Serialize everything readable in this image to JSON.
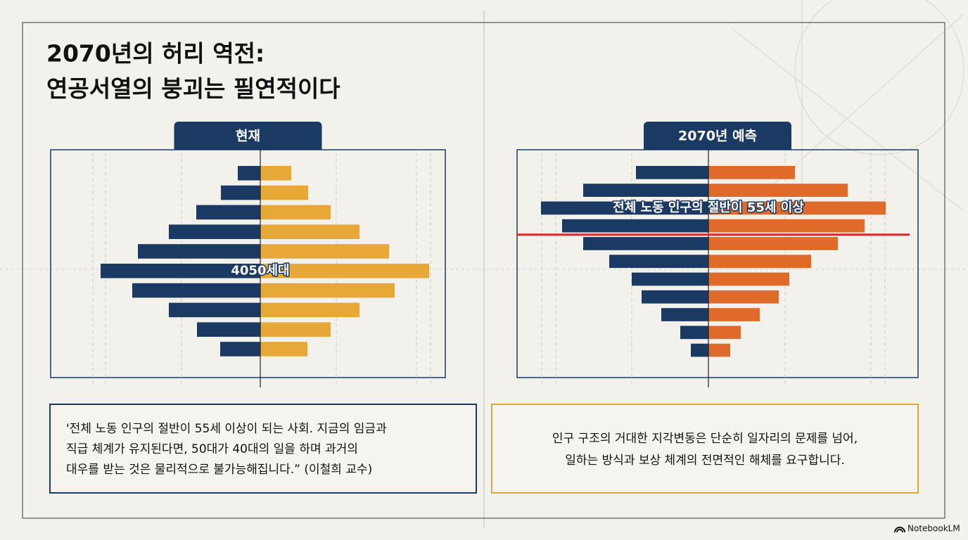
{
  "header": {
    "title_lines": [
      "2070년의 허리 역전:",
      "연공서열의 붕괴는 필연적이다"
    ]
  },
  "chart_data": [
    {
      "type": "pyramid",
      "title": "현재",
      "annotation": "4050세대",
      "categories": [
        null,
        null,
        null,
        null,
        null,
        null,
        null,
        null,
        null,
        null
      ],
      "series": [
        {
          "color": "#1b3a63",
          "values": [
            32,
            56,
            91,
            130,
            174,
            227,
            182,
            130,
            90,
            57
          ]
        },
        {
          "color": "#e8a838",
          "values": [
            44,
            68,
            100,
            141,
            183,
            240,
            191,
            141,
            100,
            67
          ]
        }
      ]
    },
    {
      "type": "pyramid",
      "title": "2070년 예측",
      "annotation": "전체 노동 인구의 절반이 55세 이상",
      "categories": [
        null,
        null,
        null,
        null,
        null,
        null,
        null,
        null,
        null,
        null,
        null
      ],
      "series": [
        {
          "color": "#1b3a63",
          "values": [
            103,
            178,
            238,
            208,
            178,
            141,
            109,
            95,
            67,
            40,
            25
          ]
        },
        {
          "color": "#e06a2a",
          "values": [
            123,
            198,
            252,
            222,
            184,
            146,
            115,
            100,
            73,
            46,
            31
          ]
        }
      ]
    }
  ],
  "quotes": [
    [
      "'전체 노동 인구의 절반이 55세 이상이 되는 사회. 지금의 임금과",
      "직급 체계가 유지된다면, 50대가 40대의 일을 하며 과거의",
      "대우를 받는 것은 물리적으로 불가능해집니다.” (이철희 교수)"
    ],
    [
      "인구 구조의 거대한 지각변동은 단순히 일자리의 문제를 넘어,",
      "일하는 방식과 보상 체계의 전면적인 해체를 요구합니다."
    ]
  ],
  "footer": "NotebookLM"
}
